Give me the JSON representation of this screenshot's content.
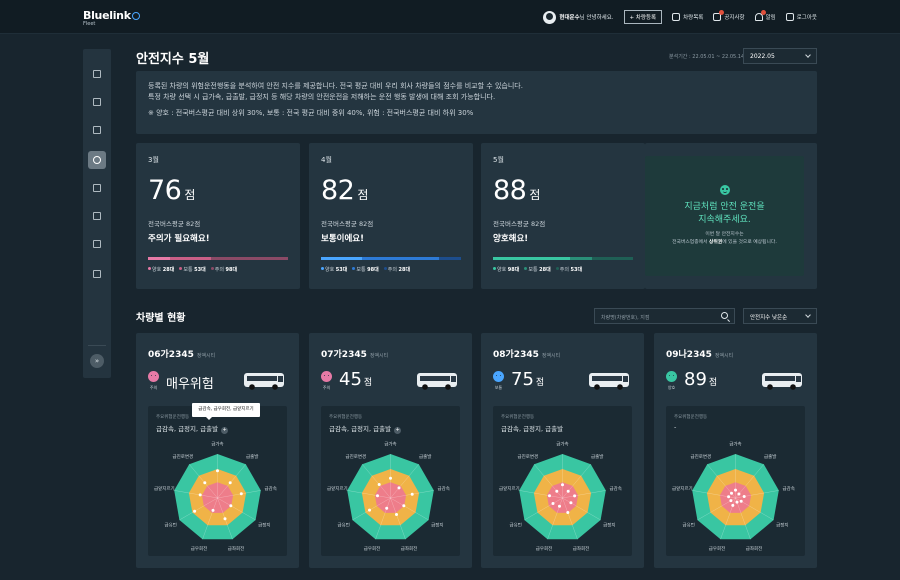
{
  "header": {
    "logo": "Bluelink",
    "logo_sub": "Fleet",
    "greeting_name": "현대운수",
    "greeting_rest": "님 안녕하세요.",
    "register_btn": "+ 차량등록",
    "nav": [
      {
        "label": "차량목록",
        "icon": "bus-icon"
      },
      {
        "label": "공지사항",
        "icon": "megaphone-icon"
      },
      {
        "label": "알림",
        "icon": "bell-icon"
      },
      {
        "label": "로그아웃",
        "icon": "logout-icon"
      }
    ]
  },
  "sidebar": {
    "items": [
      "dashboard-icon",
      "bus-icon",
      "chart-icon",
      "gauge-icon",
      "location-icon",
      "document-icon",
      "report-icon",
      "settings-icon"
    ],
    "active_index": 3,
    "expand_label": "»"
  },
  "page": {
    "title": "안전지수 5월",
    "period": "분석기간 : 22.05.01 ~ 22.05.14",
    "month_select": "2022.05",
    "info_line1": "등록된 차량의 위험운전행동을 분석하여 안전 지수를 제공합니다. 전국 평균 대비 우리 회사 차량들의 점수를 비교할 수 있습니다.",
    "info_line2": "특정 차량 선택 시 급가속, 급출발, 급정지 등 해당 차량의 안전운전을 저해하는 운전 행동 발생에 대해 조회 가능합니다.",
    "info_note": "※ 양호 : 전국버스평균 대비 상위 30%, 보통 : 전국 평균 대비 중위 40%, 위험 : 전국버스평균 대비 하위 30%"
  },
  "score_cards": [
    {
      "month": "3월",
      "score": "76",
      "unit": "점",
      "avg": "전국버스평균 82점",
      "status": "주의가 필요해요!",
      "bar": [
        {
          "color": "#e67aa6",
          "v": 28
        },
        {
          "color": "#c95f86",
          "v": 53
        },
        {
          "color": "#8a4a66",
          "v": 98
        }
      ],
      "legend": [
        {
          "label": "양호",
          "count": "28대",
          "color": "#e67aa6"
        },
        {
          "label": "보통",
          "count": "53대",
          "color": "#c95f86"
        },
        {
          "label": "주의",
          "count": "98대",
          "color": "#8a4a66"
        }
      ]
    },
    {
      "month": "4월",
      "score": "82",
      "unit": "점",
      "avg": "전국버스평균 82점",
      "status": "보통이에요!",
      "bar": [
        {
          "color": "#4aa6ff",
          "v": 53
        },
        {
          "color": "#2d7ad6",
          "v": 98
        },
        {
          "color": "#1d4d8c",
          "v": 28
        }
      ],
      "legend": [
        {
          "label": "양호",
          "count": "53대",
          "color": "#4aa6ff"
        },
        {
          "label": "보통",
          "count": "98대",
          "color": "#2d7ad6"
        },
        {
          "label": "주의",
          "count": "28대",
          "color": "#1d4d8c"
        }
      ]
    },
    {
      "month": "5월",
      "score": "88",
      "unit": "점",
      "avg": "전국버스평균 82점",
      "status": "양호해요!",
      "bar": [
        {
          "color": "#39c6a2",
          "v": 98
        },
        {
          "color": "#2a8f78",
          "v": 28
        },
        {
          "color": "#1f5f55",
          "v": 53
        }
      ],
      "legend": [
        {
          "label": "양호",
          "count": "98대",
          "color": "#39c6a2"
        },
        {
          "label": "보통",
          "count": "28대",
          "color": "#2a8f78"
        },
        {
          "label": "주의",
          "count": "53대",
          "color": "#1f5f55"
        }
      ]
    }
  ],
  "message": {
    "line1": "지금처럼 안전 운전을",
    "line2": "지속해주세요.",
    "sub1": "이번 달 안전지수는",
    "sub2_pre": "전국버스업종에서 ",
    "sub2_bold": "상위권",
    "sub2_post": "에 있을 것으로 예상됩니다."
  },
  "vehicles_section": {
    "title": "차량별 현황",
    "search_placeholder": "차량명(차량번호), 지점",
    "sort_select": "안전지수 낮은순"
  },
  "tooltip": "급감속, 급우회전, 급앞지르기",
  "vehicles": [
    {
      "name": "06가2345",
      "company": "정액시티",
      "face_color": "#e67aa6",
      "face_label": "주의",
      "score": "매우위험",
      "unit": "",
      "behavior_label": "주요위험운전행동",
      "behavior": "급감속, 급정지, 급출발",
      "plus": "+",
      "points": [
        0.62,
        0.45,
        0.55,
        0.35,
        0.5,
        0.3,
        0.6,
        0.4,
        0.45
      ]
    },
    {
      "name": "07가2345",
      "company": "정액시티",
      "face_color": "#e67aa6",
      "face_label": "주의",
      "score": "45",
      "unit": "점",
      "behavior_label": "주요위험운전행동",
      "behavior": "급감속, 급정지, 급출발",
      "plus": "+",
      "points": [
        0.45,
        0.3,
        0.5,
        0.35,
        0.4,
        0.25,
        0.55,
        0.3,
        0.4
      ]
    },
    {
      "name": "08가2345",
      "company": "정액시티",
      "face_color": "#4aa6ff",
      "face_label": "보통",
      "score": "75",
      "unit": "점",
      "behavior_label": "주요위험운전행동",
      "behavior": "급감속, 급정지, 급출발",
      "plus": "",
      "points": [
        0.3,
        0.2,
        0.28,
        0.22,
        0.35,
        0.2,
        0.25,
        0.3,
        0.2
      ]
    },
    {
      "name": "09나2345",
      "company": "정액시티",
      "face_color": "#39c6a2",
      "face_label": "양호",
      "score": "89",
      "unit": "점",
      "behavior_label": "주요위험운전행동",
      "behavior": "-",
      "plus": "",
      "points": [
        0.18,
        0.12,
        0.2,
        0.15,
        0.1,
        0.18,
        0.12,
        0.16,
        0.14
      ]
    }
  ],
  "radar_axes": [
    "급가속",
    "급출발",
    "급감속",
    "급정지",
    "급좌회전",
    "급우회전",
    "급유턴",
    "급앞지르기",
    "급진로변경"
  ]
}
